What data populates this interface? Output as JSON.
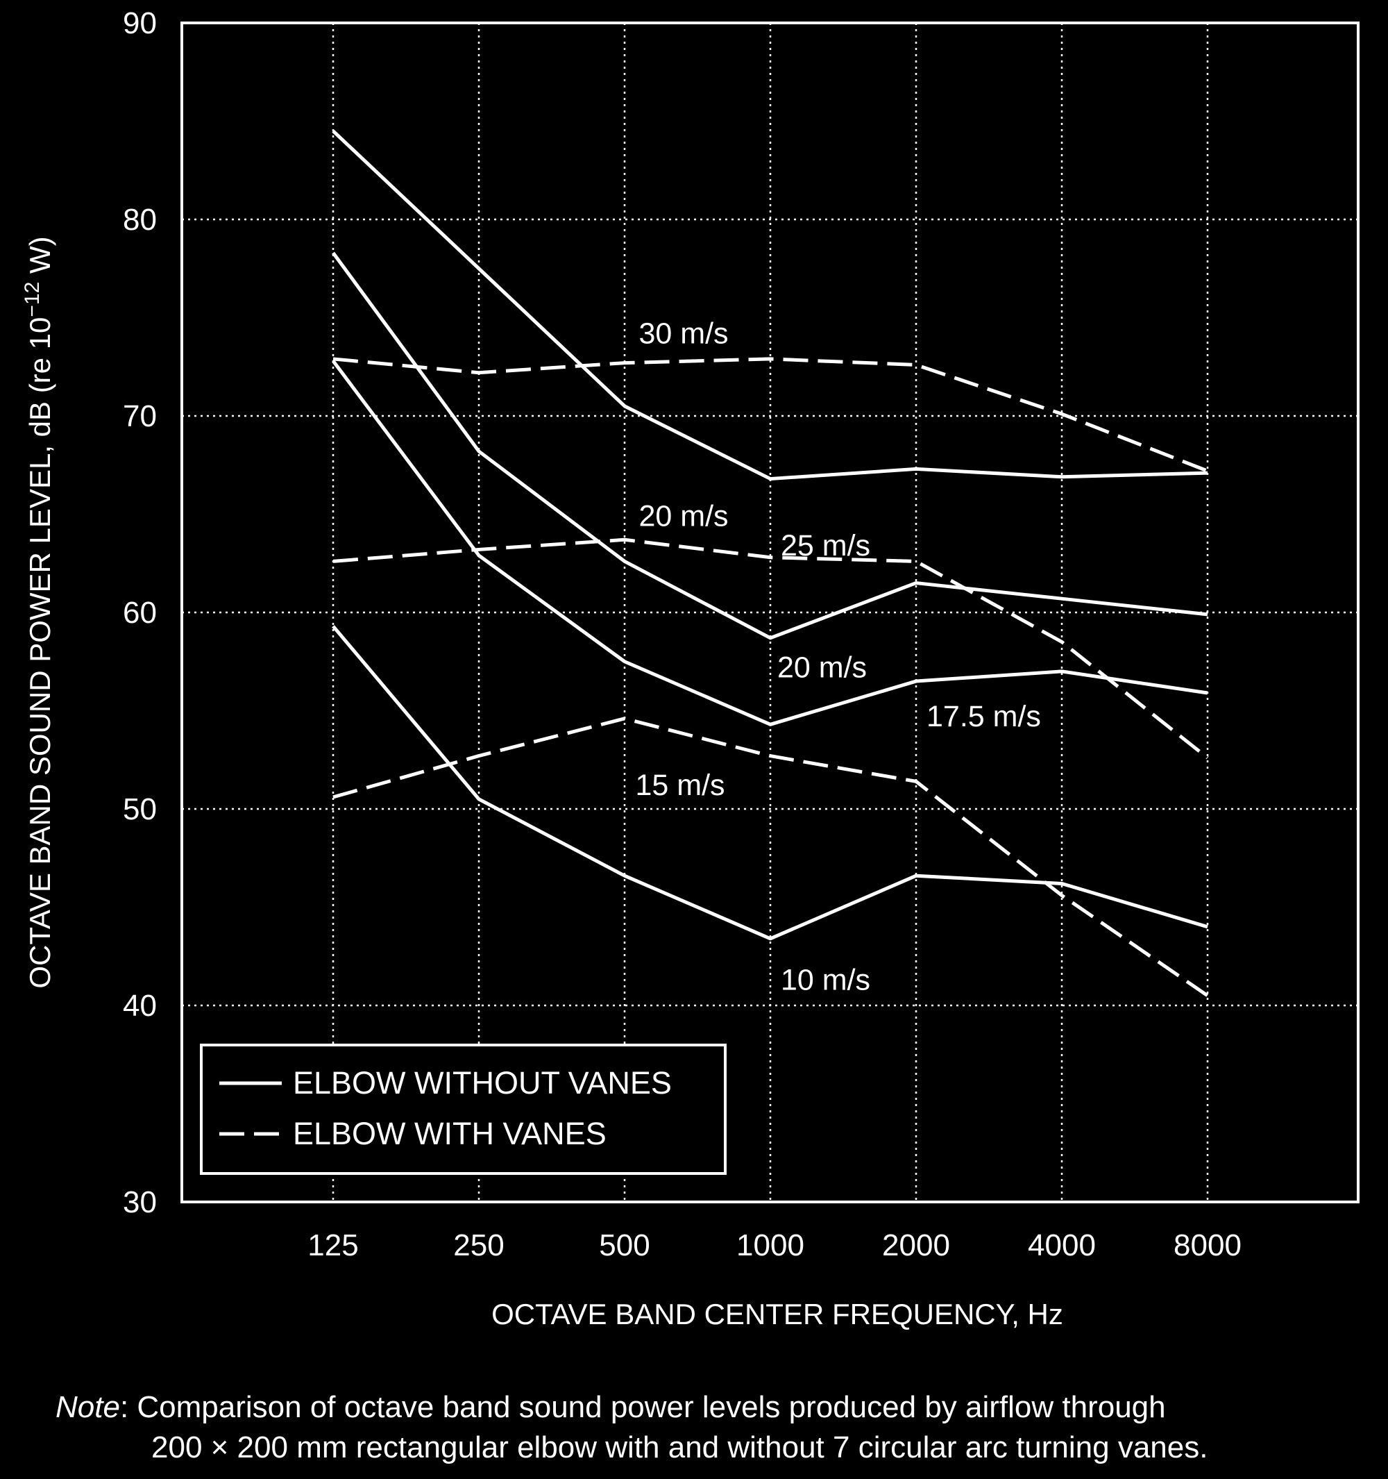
{
  "chart_data": {
    "type": "line",
    "xlabel": "OCTAVE BAND CENTER FREQUENCY, Hz",
    "ylabel_parts": [
      "OCTAVE BAND SOUND POWER LEVEL, dB (re 10",
      "−12",
      " W)"
    ],
    "ylim": [
      30,
      90
    ],
    "y_ticks": [
      30,
      40,
      50,
      60,
      70,
      80,
      90
    ],
    "x_scale": "log2",
    "categories": [
      "125",
      "250",
      "500",
      "1000",
      "2000",
      "4000",
      "8000"
    ],
    "grid": true,
    "legend": {
      "placement": "lower-left",
      "entries": [
        {
          "label": "ELBOW WITHOUT VANES",
          "style": "solid"
        },
        {
          "label": "ELBOW WITH VANES",
          "style": "dashed"
        }
      ]
    },
    "series": [
      {
        "label": "25 m/s",
        "style": "solid",
        "values": [
          84.5,
          77.5,
          70.5,
          66.8,
          67.3,
          66.9,
          67.1
        ]
      },
      {
        "label": "20 m/s",
        "style": "solid",
        "values": [
          78.3,
          68.2,
          62.6,
          58.7,
          61.5,
          60.7,
          59.9
        ]
      },
      {
        "label": "17.5 m/s",
        "style": "solid",
        "values": [
          72.8,
          62.9,
          57.5,
          54.3,
          56.5,
          57.0,
          55.9
        ]
      },
      {
        "label": "10 m/s",
        "style": "solid",
        "values": [
          59.3,
          50.5,
          46.6,
          43.4,
          46.6,
          46.2,
          44.0
        ]
      },
      {
        "label": "30 m/s",
        "style": "dashed",
        "values": [
          72.9,
          72.2,
          72.7,
          72.9,
          72.6,
          70.1,
          67.2
        ]
      },
      {
        "label": "20 m/s",
        "style": "dashed",
        "values": [
          62.6,
          63.2,
          63.7,
          62.8,
          62.6,
          58.5,
          52.6
        ]
      },
      {
        "label": "15 m/s",
        "style": "dashed",
        "values": [
          50.6,
          52.7,
          54.6,
          52.7,
          51.4,
          45.6,
          40.5
        ]
      }
    ]
  },
  "note": {
    "prefix": "Note",
    "line1": ": Comparison of octave band sound power levels produced by airflow through",
    "line2": "200 × 200 mm rectangular elbow with and without 7 circular arc turning vanes."
  }
}
